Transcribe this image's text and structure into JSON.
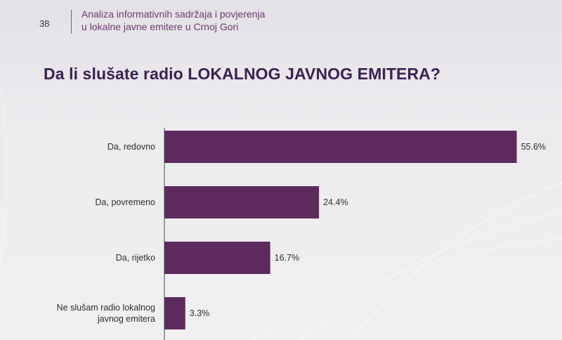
{
  "header": {
    "page_number": "38",
    "doc_title_line1": "Analiza informativnih sadržaja i povjerenja",
    "doc_title_line2": "u lokalne javne emitere u Crnoj Gori"
  },
  "question": "Da li slušate radio LOKALNOG JAVNOG EMITERA?",
  "colors": {
    "bar": "#5e2a5e",
    "title": "#3c2150",
    "header_text": "#6e3a6f"
  },
  "chart_data": {
    "type": "bar",
    "orientation": "horizontal",
    "categories": [
      [
        "Da, redovno"
      ],
      [
        "Da, povremeno"
      ],
      [
        "Da, rijetko"
      ],
      [
        "Ne slušam radio lokalnog",
        "javnog emitera"
      ]
    ],
    "values": [
      55.6,
      24.4,
      16.7,
      3.3
    ],
    "value_labels": [
      "55.6%",
      "24.4%",
      "16.7%",
      "3.3%"
    ],
    "unit": "%",
    "xlim": [
      0,
      57.2
    ],
    "grid": false,
    "legend": "none"
  }
}
